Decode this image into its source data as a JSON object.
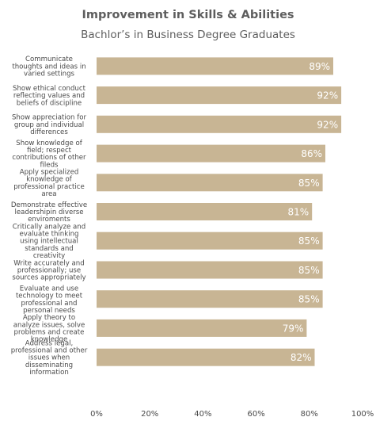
{
  "chart_data": {
    "type": "bar",
    "orientation": "horizontal",
    "title": "Improvement in Skills & Abilities",
    "subtitle": "Bachlor’s in Business Degree Graduates",
    "categories": [
      [
        "Communicate",
        "thoughts and ideas in",
        "varied settings"
      ],
      [
        "Show ethical conduct",
        "reflecting values and",
        "beliefs of discipline"
      ],
      [
        "Show appreciation for",
        "group and individual",
        "differences"
      ],
      [
        "Show knowledge of",
        "field; respect",
        "contributions of other",
        "fileds"
      ],
      [
        "Apply specialized",
        "knowledge of",
        "professional practice",
        "area"
      ],
      [
        "Demonstrate effective",
        "leadershipin diverse",
        "enviroments"
      ],
      [
        "Critically analyze and",
        "evaluate thinking",
        "using intellectual",
        "standards and",
        "creativity"
      ],
      [
        "Write accurately and",
        "professionally; use",
        "sources appropriately"
      ],
      [
        "Evaluate and use",
        "technology to meet",
        "professional and",
        "personal needs"
      ],
      [
        "Apply theory to",
        "analyze issues, solve",
        "problems and create",
        "knowledge"
      ],
      [
        "Address legal,",
        "professional and other",
        "issues when",
        "disseminating",
        "information"
      ]
    ],
    "values": [
      89,
      92,
      92,
      86,
      85,
      81,
      85,
      85,
      85,
      79,
      82
    ],
    "data_labels": [
      "89%",
      "92%",
      "92%",
      "86%",
      "85%",
      "81%",
      "85%",
      "85%",
      "85%",
      "79%",
      "82%"
    ],
    "xlim": [
      0,
      100
    ],
    "xticks": [
      0,
      20,
      40,
      60,
      80,
      100
    ],
    "xtick_labels": [
      "0%",
      "20%",
      "40%",
      "60%",
      "80%",
      "100%"
    ],
    "grid": false,
    "legend": "none",
    "bar_color": "#c8b594",
    "label_color": "#ffffff",
    "text_color": "#4a4a4a"
  }
}
